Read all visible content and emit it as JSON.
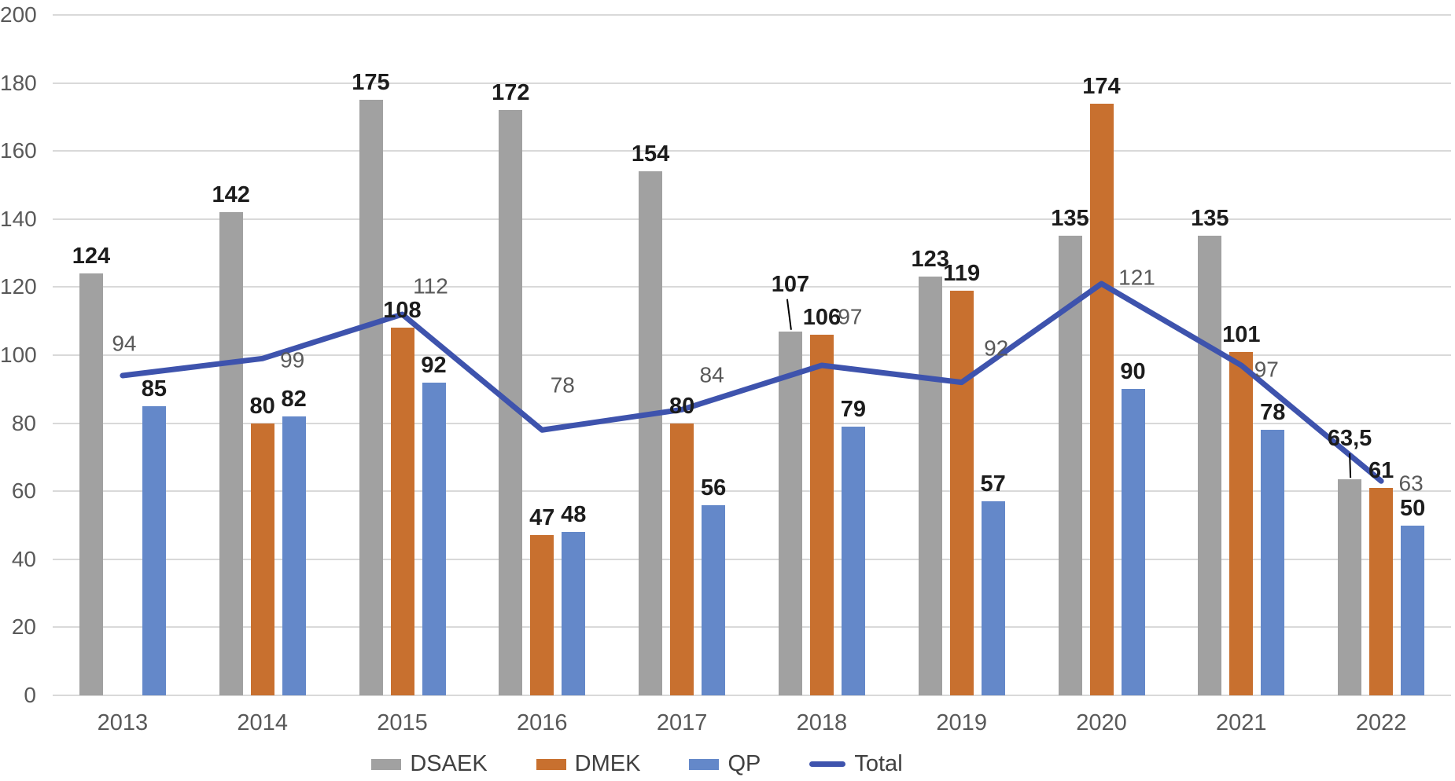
{
  "chart_data": {
    "type": "bar",
    "title": "",
    "xlabel": "",
    "ylabel": "",
    "categories": [
      "2013",
      "2014",
      "2015",
      "2016",
      "2017",
      "2018",
      "2019",
      "2020",
      "2021",
      "2022"
    ],
    "series": [
      {
        "name": "DSAEK",
        "type": "bar",
        "color": "#a1a1a1",
        "values": [
          124,
          142,
          175,
          172,
          154,
          107,
          123,
          135,
          135,
          63.5
        ],
        "labels": [
          "124",
          "142",
          "175",
          "172",
          "154",
          "107",
          "123",
          "135",
          "135",
          "63,5"
        ]
      },
      {
        "name": "DMEK",
        "type": "bar",
        "color": "#c8702f",
        "values": [
          null,
          80,
          108,
          47,
          80,
          106,
          119,
          174,
          101,
          61
        ],
        "labels": [
          "",
          "80",
          "108",
          "47",
          "80",
          "106",
          "119",
          "174",
          "101",
          "61"
        ]
      },
      {
        "name": "QP",
        "type": "bar",
        "color": "#6488c9",
        "values": [
          85,
          82,
          92,
          48,
          56,
          79,
          57,
          90,
          78,
          50
        ],
        "labels": [
          "85",
          "82",
          "92",
          "48",
          "56",
          "79",
          "57",
          "90",
          "78",
          "50"
        ]
      },
      {
        "name": "Total",
        "type": "line",
        "color": "#3e53ad",
        "values": [
          94,
          99,
          112,
          78,
          84,
          97,
          92,
          121,
          97,
          63
        ],
        "labels": [
          "94",
          "99",
          "112",
          "78",
          "84",
          "97",
          "92",
          "121",
          "97",
          "63"
        ],
        "label_offsets": [
          [
            2,
            -40
          ],
          [
            38,
            3
          ],
          [
            36,
            -35
          ],
          [
            26,
            -56
          ],
          [
            38,
            -43
          ],
          [
            36,
            -61
          ],
          [
            44,
            -43
          ],
          [
            45,
            -7
          ],
          [
            32,
            6
          ],
          [
            38,
            4
          ]
        ]
      }
    ],
    "ylim": [
      0,
      200
    ],
    "yticks": [
      0,
      20,
      40,
      60,
      80,
      100,
      120,
      140,
      160,
      180,
      200
    ],
    "grid": true,
    "legend_position": "bottom",
    "legend": [
      "DSAEK",
      "DMEK",
      "QP",
      "Total"
    ],
    "annotations": {
      "label_leaders": [
        {
          "series": 0,
          "index": 5,
          "lift": 38
        },
        {
          "series": 0,
          "index": 9,
          "lift": 30
        }
      ]
    },
    "colors": {
      "gridline": "#d9d9d9",
      "axis_text": "#595959",
      "bar_label_text": "#1c1c1c",
      "line_label_text": "#595959",
      "leader_line": "#000000"
    }
  }
}
